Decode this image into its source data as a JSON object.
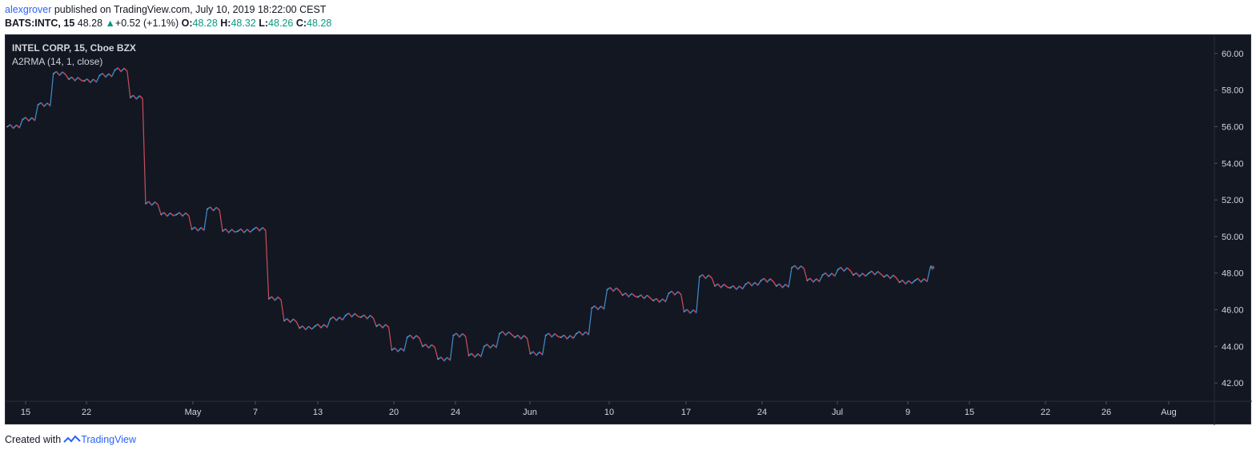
{
  "header": {
    "user": "alexgrover",
    "published": " published on TradingView.com, July 10, 2019 18:22:00 CEST"
  },
  "quote": {
    "symbol": "BATS:INTC, 15",
    "last": "48.28",
    "change": "+0.52 (+1.1%)",
    "o_label": "O:",
    "o": "48.28",
    "h_label": "H:",
    "h": "48.32",
    "l_label": "L:",
    "l": "48.26",
    "c_label": "C:",
    "c": "48.28"
  },
  "legend": {
    "title": "INTEL CORP, 15, Cboe BZX",
    "indicator": "A2RMA (14, 1, close)"
  },
  "footer": {
    "created_with": "Created with",
    "brand": "TradingView"
  },
  "colors": {
    "background": "#131722",
    "price": "#5b9bd5",
    "up": "#2196f3",
    "down": "#f23645",
    "axis_text": "#d1d4dc",
    "positive": "#089981"
  },
  "chart_data": {
    "type": "line",
    "ylim": [
      41.0,
      61.0
    ],
    "y_ticks": [
      "60.00",
      "58.00",
      "56.00",
      "54.00",
      "52.00",
      "50.00",
      "48.00",
      "46.00",
      "44.00",
      "42.00"
    ],
    "x_ticks": [
      "15",
      "22",
      "May",
      "7",
      "13",
      "20",
      "24",
      "Jun",
      "10",
      "17",
      "24",
      "Jul",
      "9",
      "15",
      "22",
      "26",
      "Aug"
    ],
    "series": [
      {
        "x": [
          "Apr 15",
          "Apr 16",
          "Apr 17",
          "Apr 18",
          "Apr 19",
          "Apr 22",
          "Apr 23",
          "Apr 24",
          "Apr 25",
          "Apr 26",
          "Apr 29",
          "Apr 30",
          "May 1",
          "May 2",
          "May 3",
          "May 6",
          "May 7",
          "May 8",
          "May 9",
          "May 10",
          "May 13",
          "May 14",
          "May 15",
          "May 16",
          "May 17",
          "May 20",
          "May 21",
          "May 22",
          "May 23",
          "May 24",
          "May 28",
          "May 29",
          "May 30",
          "May 31",
          "Jun 3",
          "Jun 4",
          "Jun 5",
          "Jun 6",
          "Jun 7",
          "Jun 10",
          "Jun 11",
          "Jun 12",
          "Jun 13",
          "Jun 14",
          "Jun 17",
          "Jun 18",
          "Jun 19",
          "Jun 20",
          "Jun 21",
          "Jun 24",
          "Jun 25",
          "Jun 26",
          "Jun 27",
          "Jun 28",
          "Jul 1",
          "Jul 2",
          "Jul 3",
          "Jul 5",
          "Jul 8",
          "Jul 9",
          "Jul 10"
        ],
        "values": [
          56.0,
          56.4,
          57.2,
          58.9,
          58.6,
          58.5,
          58.8,
          59.1,
          57.6,
          51.8,
          51.2,
          51.2,
          50.4,
          51.5,
          50.3,
          50.3,
          50.4,
          46.6,
          45.4,
          45.0,
          45.1,
          45.5,
          45.7,
          45.6,
          45.1,
          43.8,
          44.5,
          44.0,
          43.3,
          44.6,
          43.5,
          44.0,
          44.7,
          44.5,
          43.6,
          44.6,
          44.5,
          44.7,
          46.1,
          47.1,
          46.8,
          46.7,
          46.5,
          46.9,
          45.9,
          47.8,
          47.3,
          47.2,
          47.4,
          47.6,
          47.3,
          48.3,
          47.6,
          47.9,
          48.2,
          47.9,
          48.0,
          47.8,
          47.5,
          47.6,
          48.3
        ]
      }
    ]
  }
}
